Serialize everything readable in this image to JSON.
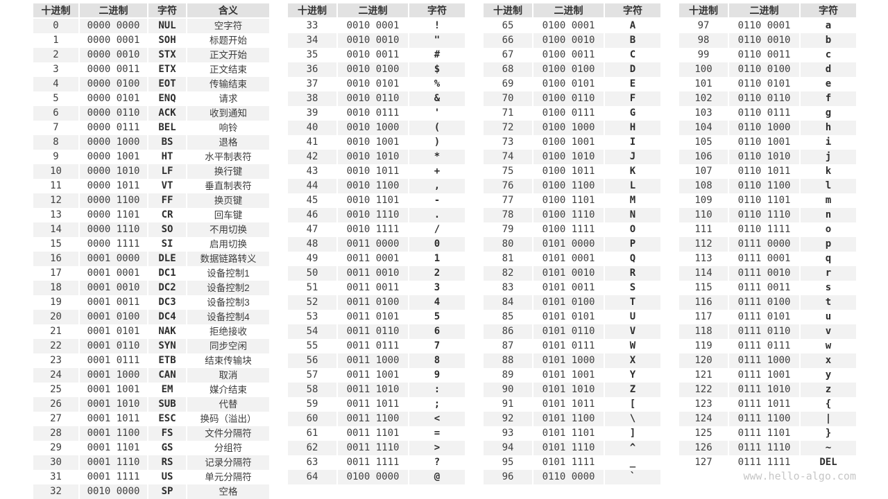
{
  "watermark": "www.hello-algo.com",
  "colors": {
    "header_bg": "#e2e2e2",
    "stripe_bg": "#f2f2f2",
    "row_bg": "#ffffff",
    "watermark": "#c6c6c6"
  },
  "column_keys": [
    "decimal",
    "binary",
    "char",
    "meaning"
  ],
  "tables": [
    {
      "name": "control-chars-0-32",
      "headers": [
        "十进制",
        "二进制",
        "字符",
        "含义"
      ],
      "rows": [
        [
          0,
          "0000 0000",
          "NUL",
          "空字符"
        ],
        [
          1,
          "0000 0001",
          "SOH",
          "标题开始"
        ],
        [
          2,
          "0000 0010",
          "STX",
          "正文开始"
        ],
        [
          3,
          "0000 0011",
          "ETX",
          "正文结束"
        ],
        [
          4,
          "0000 0100",
          "EOT",
          "传输结束"
        ],
        [
          5,
          "0000 0101",
          "ENQ",
          "请求"
        ],
        [
          6,
          "0000 0110",
          "ACK",
          "收到通知"
        ],
        [
          7,
          "0000 0111",
          "BEL",
          "响铃"
        ],
        [
          8,
          "0000 1000",
          "BS",
          "退格"
        ],
        [
          9,
          "0000 1001",
          "HT",
          "水平制表符"
        ],
        [
          10,
          "0000 1010",
          "LF",
          "换行键"
        ],
        [
          11,
          "0000 1011",
          "VT",
          "垂直制表符"
        ],
        [
          12,
          "0000 1100",
          "FF",
          "换页键"
        ],
        [
          13,
          "0000 1101",
          "CR",
          "回车键"
        ],
        [
          14,
          "0000 1110",
          "SO",
          "不用切换"
        ],
        [
          15,
          "0000 1111",
          "SI",
          "启用切换"
        ],
        [
          16,
          "0001 0000",
          "DLE",
          "数据链路转义"
        ],
        [
          17,
          "0001 0001",
          "DC1",
          "设备控制1"
        ],
        [
          18,
          "0001 0010",
          "DC2",
          "设备控制2"
        ],
        [
          19,
          "0001 0011",
          "DC3",
          "设备控制3"
        ],
        [
          20,
          "0001 0100",
          "DC4",
          "设备控制4"
        ],
        [
          21,
          "0001 0101",
          "NAK",
          "拒绝接收"
        ],
        [
          22,
          "0001 0110",
          "SYN",
          "同步空闲"
        ],
        [
          23,
          "0001 0111",
          "ETB",
          "结束传输块"
        ],
        [
          24,
          "0001 1000",
          "CAN",
          "取消"
        ],
        [
          25,
          "0001 1001",
          "EM",
          "媒介结束"
        ],
        [
          26,
          "0001 1010",
          "SUB",
          "代替"
        ],
        [
          27,
          "0001 1011",
          "ESC",
          "换码（溢出）"
        ],
        [
          28,
          "0001 1100",
          "FS",
          "文件分隔符"
        ],
        [
          29,
          "0001 1101",
          "GS",
          "分组符"
        ],
        [
          30,
          "0001 1110",
          "RS",
          "记录分隔符"
        ],
        [
          31,
          "0001 1111",
          "US",
          "单元分隔符"
        ],
        [
          32,
          "0010 0000",
          "SP",
          "空格"
        ]
      ]
    },
    {
      "name": "chars-33-64",
      "headers": [
        "十进制",
        "二进制",
        "字符"
      ],
      "rows": [
        [
          33,
          "0010 0001",
          "!"
        ],
        [
          34,
          "0010 0010",
          "\""
        ],
        [
          35,
          "0010 0011",
          "#"
        ],
        [
          36,
          "0010 0100",
          "$"
        ],
        [
          37,
          "0010 0101",
          "%"
        ],
        [
          38,
          "0010 0110",
          "&"
        ],
        [
          39,
          "0010 0111",
          "'"
        ],
        [
          40,
          "0010 1000",
          "("
        ],
        [
          41,
          "0010 1001",
          ")"
        ],
        [
          42,
          "0010 1010",
          "*"
        ],
        [
          43,
          "0010 1011",
          "+"
        ],
        [
          44,
          "0010 1100",
          ","
        ],
        [
          45,
          "0010 1101",
          "-"
        ],
        [
          46,
          "0010 1110",
          "."
        ],
        [
          47,
          "0010 1111",
          "/"
        ],
        [
          48,
          "0011 0000",
          "0"
        ],
        [
          49,
          "0011 0001",
          "1"
        ],
        [
          50,
          "0011 0010",
          "2"
        ],
        [
          51,
          "0011 0011",
          "3"
        ],
        [
          52,
          "0011 0100",
          "4"
        ],
        [
          53,
          "0011 0101",
          "5"
        ],
        [
          54,
          "0011 0110",
          "6"
        ],
        [
          55,
          "0011 0111",
          "7"
        ],
        [
          56,
          "0011 1000",
          "8"
        ],
        [
          57,
          "0011 1001",
          "9"
        ],
        [
          58,
          "0011 1010",
          ":"
        ],
        [
          59,
          "0011 1011",
          ";"
        ],
        [
          60,
          "0011 1100",
          "<"
        ],
        [
          61,
          "0011 1101",
          "="
        ],
        [
          62,
          "0011 1110",
          ">"
        ],
        [
          63,
          "0011 1111",
          "?"
        ],
        [
          64,
          "0100 0000",
          "@"
        ]
      ]
    },
    {
      "name": "chars-65-96",
      "headers": [
        "十进制",
        "二进制",
        "字符"
      ],
      "rows": [
        [
          65,
          "0100 0001",
          "A"
        ],
        [
          66,
          "0100 0010",
          "B"
        ],
        [
          67,
          "0100 0011",
          "C"
        ],
        [
          68,
          "0100 0100",
          "D"
        ],
        [
          69,
          "0100 0101",
          "E"
        ],
        [
          70,
          "0100 0110",
          "F"
        ],
        [
          71,
          "0100 0111",
          "G"
        ],
        [
          72,
          "0100 1000",
          "H"
        ],
        [
          73,
          "0100 1001",
          "I"
        ],
        [
          74,
          "0100 1010",
          "J"
        ],
        [
          75,
          "0100 1011",
          "K"
        ],
        [
          76,
          "0100 1100",
          "L"
        ],
        [
          77,
          "0100 1101",
          "M"
        ],
        [
          78,
          "0100 1110",
          "N"
        ],
        [
          79,
          "0100 1111",
          "O"
        ],
        [
          80,
          "0101 0000",
          "P"
        ],
        [
          81,
          "0101 0001",
          "Q"
        ],
        [
          82,
          "0101 0010",
          "R"
        ],
        [
          83,
          "0101 0011",
          "S"
        ],
        [
          84,
          "0101 0100",
          "T"
        ],
        [
          85,
          "0101 0101",
          "U"
        ],
        [
          86,
          "0101 0110",
          "V"
        ],
        [
          87,
          "0101 0111",
          "W"
        ],
        [
          88,
          "0101 1000",
          "X"
        ],
        [
          89,
          "0101 1001",
          "Y"
        ],
        [
          90,
          "0101 1010",
          "Z"
        ],
        [
          91,
          "0101 1011",
          "["
        ],
        [
          92,
          "0101 1100",
          "\\"
        ],
        [
          93,
          "0101 1101",
          "]"
        ],
        [
          94,
          "0101 1110",
          "^"
        ],
        [
          95,
          "0101 1111",
          "_"
        ],
        [
          96,
          "0110 0000",
          "`"
        ]
      ]
    },
    {
      "name": "chars-97-127",
      "headers": [
        "十进制",
        "二进制",
        "字符"
      ],
      "rows": [
        [
          97,
          "0110 0001",
          "a"
        ],
        [
          98,
          "0110 0010",
          "b"
        ],
        [
          99,
          "0110 0011",
          "c"
        ],
        [
          100,
          "0110 0100",
          "d"
        ],
        [
          101,
          "0110 0101",
          "e"
        ],
        [
          102,
          "0110 0110",
          "f"
        ],
        [
          103,
          "0110 0111",
          "g"
        ],
        [
          104,
          "0110 1000",
          "h"
        ],
        [
          105,
          "0110 1001",
          "i"
        ],
        [
          106,
          "0110 1010",
          "j"
        ],
        [
          107,
          "0110 1011",
          "k"
        ],
        [
          108,
          "0110 1100",
          "l"
        ],
        [
          109,
          "0110 1101",
          "m"
        ],
        [
          110,
          "0110 1110",
          "n"
        ],
        [
          111,
          "0110 1111",
          "o"
        ],
        [
          112,
          "0111 0000",
          "p"
        ],
        [
          113,
          "0111 0001",
          "q"
        ],
        [
          114,
          "0111 0010",
          "r"
        ],
        [
          115,
          "0111 0011",
          "s"
        ],
        [
          116,
          "0111 0100",
          "t"
        ],
        [
          117,
          "0111 0101",
          "u"
        ],
        [
          118,
          "0111 0110",
          "v"
        ],
        [
          119,
          "0111 0111",
          "w"
        ],
        [
          120,
          "0111 1000",
          "x"
        ],
        [
          121,
          "0111 1001",
          "y"
        ],
        [
          122,
          "0111 1010",
          "z"
        ],
        [
          123,
          "0111 1011",
          "{"
        ],
        [
          124,
          "0111 1100",
          "|"
        ],
        [
          125,
          "0111 1101",
          "}"
        ],
        [
          126,
          "0111 1110",
          "~"
        ],
        [
          127,
          "0111 1111",
          "DEL"
        ]
      ]
    }
  ]
}
